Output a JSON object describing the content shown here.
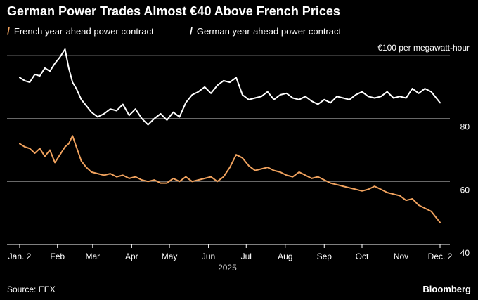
{
  "title": "German Power Trades Almost €40 Above French Prices",
  "source": "Source: EEX",
  "brand": "Bloomberg",
  "colors": {
    "french": "#f0a25e",
    "german": "#ffffff",
    "grid": "#8a8a8a",
    "background": "#000000"
  },
  "chart_data": {
    "type": "line",
    "title": "German Power Trades Almost €40 Above French Prices",
    "unit_label": "€100 per megawatt-hour",
    "year_label": "2025",
    "x_tick_labels": [
      "Jan. 2",
      "Feb",
      "Mar",
      "Apr",
      "May",
      "Jun",
      "Jul",
      "Aug",
      "Sep",
      "Oct",
      "Nov",
      "Dec. 2"
    ],
    "x_tick_dates": [
      "2025-01-02",
      "2025-02-01",
      "2025-03-01",
      "2025-04-01",
      "2025-05-01",
      "2025-06-01",
      "2025-07-01",
      "2025-08-01",
      "2025-09-01",
      "2025-10-01",
      "2025-11-01",
      "2025-12-02"
    ],
    "y_ticks": [
      40,
      60,
      80,
      100
    ],
    "y_tick_labels": [
      "40",
      "60",
      "80",
      ""
    ],
    "ylim": [
      40,
      100
    ],
    "grid": true,
    "legend_position": "top-left",
    "series": [
      {
        "name": "French year-ahead power contract",
        "color": "#f0a25e",
        "dates": [
          "2025-01-02",
          "2025-01-06",
          "2025-01-10",
          "2025-01-14",
          "2025-01-18",
          "2025-01-22",
          "2025-01-26",
          "2025-01-30",
          "2025-02-03",
          "2025-02-07",
          "2025-02-10",
          "2025-02-13",
          "2025-02-16",
          "2025-02-20",
          "2025-02-24",
          "2025-02-28",
          "2025-03-05",
          "2025-03-10",
          "2025-03-15",
          "2025-03-20",
          "2025-03-25",
          "2025-03-30",
          "2025-04-04",
          "2025-04-09",
          "2025-04-14",
          "2025-04-19",
          "2025-04-24",
          "2025-04-29",
          "2025-05-04",
          "2025-05-09",
          "2025-05-14",
          "2025-05-19",
          "2025-05-24",
          "2025-05-29",
          "2025-06-03",
          "2025-06-08",
          "2025-06-13",
          "2025-06-18",
          "2025-06-23",
          "2025-06-28",
          "2025-07-03",
          "2025-07-08",
          "2025-07-13",
          "2025-07-18",
          "2025-07-23",
          "2025-07-28",
          "2025-08-02",
          "2025-08-07",
          "2025-08-12",
          "2025-08-17",
          "2025-08-22",
          "2025-08-27",
          "2025-09-01",
          "2025-09-06",
          "2025-09-11",
          "2025-09-16",
          "2025-09-21",
          "2025-09-26",
          "2025-10-01",
          "2025-10-06",
          "2025-10-11",
          "2025-10-16",
          "2025-10-21",
          "2025-10-26",
          "2025-10-31",
          "2025-11-05",
          "2025-11-10",
          "2025-11-15",
          "2025-11-20",
          "2025-11-25",
          "2025-11-29",
          "2025-12-02"
        ],
        "values": [
          72.0,
          71.0,
          70.5,
          69.0,
          70.5,
          68.0,
          70.0,
          66.0,
          68.5,
          71.0,
          72.0,
          74.5,
          71.0,
          66.5,
          64.5,
          63.0,
          62.5,
          62.0,
          62.5,
          61.5,
          62.0,
          61.0,
          61.5,
          60.5,
          60.0,
          60.5,
          59.5,
          59.5,
          61.0,
          60.0,
          61.5,
          60.0,
          60.5,
          61.0,
          61.5,
          60.0,
          61.5,
          64.5,
          68.5,
          67.5,
          65.0,
          63.5,
          64.0,
          64.5,
          63.5,
          63.0,
          62.0,
          61.5,
          63.0,
          62.0,
          61.0,
          61.5,
          60.5,
          59.5,
          59.0,
          58.5,
          58.0,
          57.5,
          57.0,
          57.5,
          58.5,
          57.5,
          56.5,
          56.0,
          55.5,
          54.0,
          54.5,
          52.5,
          51.5,
          50.5,
          48.5,
          47.0
        ]
      },
      {
        "name": "German year-ahead power contract",
        "color": "#ffffff",
        "dates": [
          "2025-01-02",
          "2025-01-06",
          "2025-01-10",
          "2025-01-14",
          "2025-01-18",
          "2025-01-22",
          "2025-01-26",
          "2025-01-30",
          "2025-02-03",
          "2025-02-07",
          "2025-02-10",
          "2025-02-13",
          "2025-02-16",
          "2025-02-20",
          "2025-02-24",
          "2025-02-28",
          "2025-03-05",
          "2025-03-10",
          "2025-03-15",
          "2025-03-20",
          "2025-03-25",
          "2025-03-30",
          "2025-04-04",
          "2025-04-09",
          "2025-04-14",
          "2025-04-19",
          "2025-04-24",
          "2025-04-29",
          "2025-05-04",
          "2025-05-09",
          "2025-05-14",
          "2025-05-19",
          "2025-05-24",
          "2025-05-29",
          "2025-06-03",
          "2025-06-08",
          "2025-06-13",
          "2025-06-18",
          "2025-06-23",
          "2025-06-28",
          "2025-07-03",
          "2025-07-08",
          "2025-07-13",
          "2025-07-18",
          "2025-07-23",
          "2025-07-28",
          "2025-08-02",
          "2025-08-07",
          "2025-08-12",
          "2025-08-17",
          "2025-08-22",
          "2025-08-27",
          "2025-09-01",
          "2025-09-06",
          "2025-09-11",
          "2025-09-16",
          "2025-09-21",
          "2025-09-26",
          "2025-10-01",
          "2025-10-06",
          "2025-10-11",
          "2025-10-16",
          "2025-10-21",
          "2025-10-26",
          "2025-10-31",
          "2025-11-05",
          "2025-11-10",
          "2025-11-15",
          "2025-11-20",
          "2025-11-25",
          "2025-11-29",
          "2025-12-02"
        ],
        "values": [
          93.0,
          92.0,
          91.5,
          94.0,
          93.5,
          96.0,
          95.0,
          97.5,
          99.5,
          102.0,
          96.0,
          91.5,
          89.5,
          86.0,
          84.0,
          82.0,
          80.5,
          81.5,
          83.0,
          82.5,
          84.5,
          81.0,
          83.0,
          80.0,
          78.0,
          80.0,
          81.5,
          79.5,
          82.0,
          80.5,
          85.0,
          87.5,
          88.5,
          90.0,
          88.0,
          90.5,
          92.0,
          91.5,
          93.0,
          87.5,
          86.0,
          86.5,
          87.0,
          88.5,
          86.0,
          87.5,
          88.0,
          86.5,
          86.0,
          87.0,
          85.5,
          84.5,
          86.0,
          85.0,
          87.0,
          86.5,
          86.0,
          87.5,
          88.5,
          87.0,
          86.5,
          87.0,
          88.5,
          86.5,
          87.0,
          86.5,
          89.5,
          88.0,
          89.5,
          88.5,
          86.5,
          85.0
        ]
      }
    ]
  }
}
